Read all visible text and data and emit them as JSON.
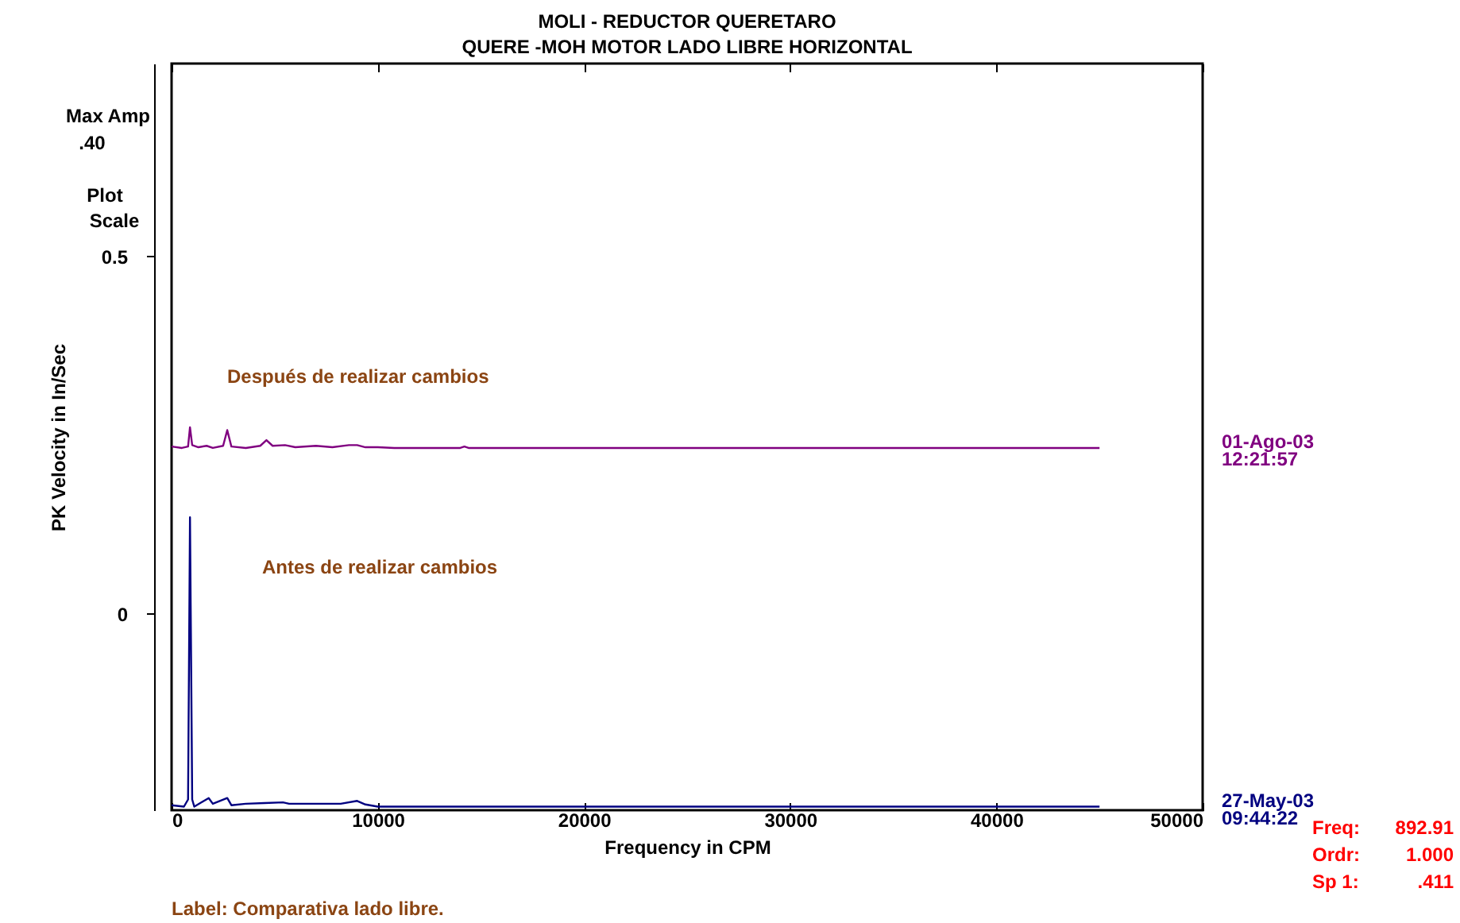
{
  "chart_data": {
    "type": "line",
    "title": "MOLI - REDUCTOR QUERETARO",
    "subtitle": "QUERE     -MOH   MOTOR LADO LIBRE HORIZONTAL",
    "xlabel": "Frequency in CPM",
    "ylabel": "PK Velocity in In/Sec",
    "xlim": [
      0,
      50000
    ],
    "xticks": [
      0,
      10000,
      20000,
      30000,
      40000,
      50000
    ],
    "ylim": [
      -0.275,
      0.77
    ],
    "yticks": [
      0,
      0.5
    ],
    "grid": false,
    "series": [
      {
        "name": "01-Ago-03 12:21:57",
        "color": "#800080",
        "x": [
          0,
          500,
          800,
          893,
          1000,
          1300,
          1700,
          2000,
          2500,
          2700,
          2900,
          3600,
          4300,
          4600,
          4900,
          5500,
          6000,
          7000,
          7800,
          8600,
          9000,
          9400,
          10000,
          10800,
          14000,
          14200,
          14400,
          45000
        ],
        "values": [
          0.234,
          0.232,
          0.234,
          0.261,
          0.236,
          0.233,
          0.235,
          0.232,
          0.235,
          0.257,
          0.234,
          0.232,
          0.235,
          0.243,
          0.235,
          0.236,
          0.233,
          0.235,
          0.233,
          0.236,
          0.236,
          0.233,
          0.233,
          0.232,
          0.232,
          0.234,
          0.232,
          0.232
        ]
      },
      {
        "name": "27-May-03 09:44:22",
        "color": "#000080",
        "x": [
          0,
          600,
          800,
          893,
          1000,
          1100,
          1800,
          2000,
          2700,
          2900,
          3600,
          4500,
          5400,
          5700,
          7200,
          8200,
          9000,
          9400,
          10000,
          45000
        ],
        "values": [
          -0.268,
          -0.27,
          -0.26,
          0.135,
          -0.26,
          -0.27,
          -0.258,
          -0.266,
          -0.258,
          -0.268,
          -0.266,
          -0.265,
          -0.264,
          -0.266,
          -0.266,
          -0.266,
          -0.262,
          -0.267,
          -0.27,
          -0.27
        ]
      }
    ],
    "annotations": [
      "Después de realizar cambios",
      "Antes de realizar cambios",
      "Max Amp",
      ".40",
      "Plot",
      "Scale",
      "Label:  Comparativa lado libre.",
      "Freq:",
      "892.91",
      "Ordr:",
      "1.000",
      "Sp 1:",
      ".411"
    ]
  }
}
